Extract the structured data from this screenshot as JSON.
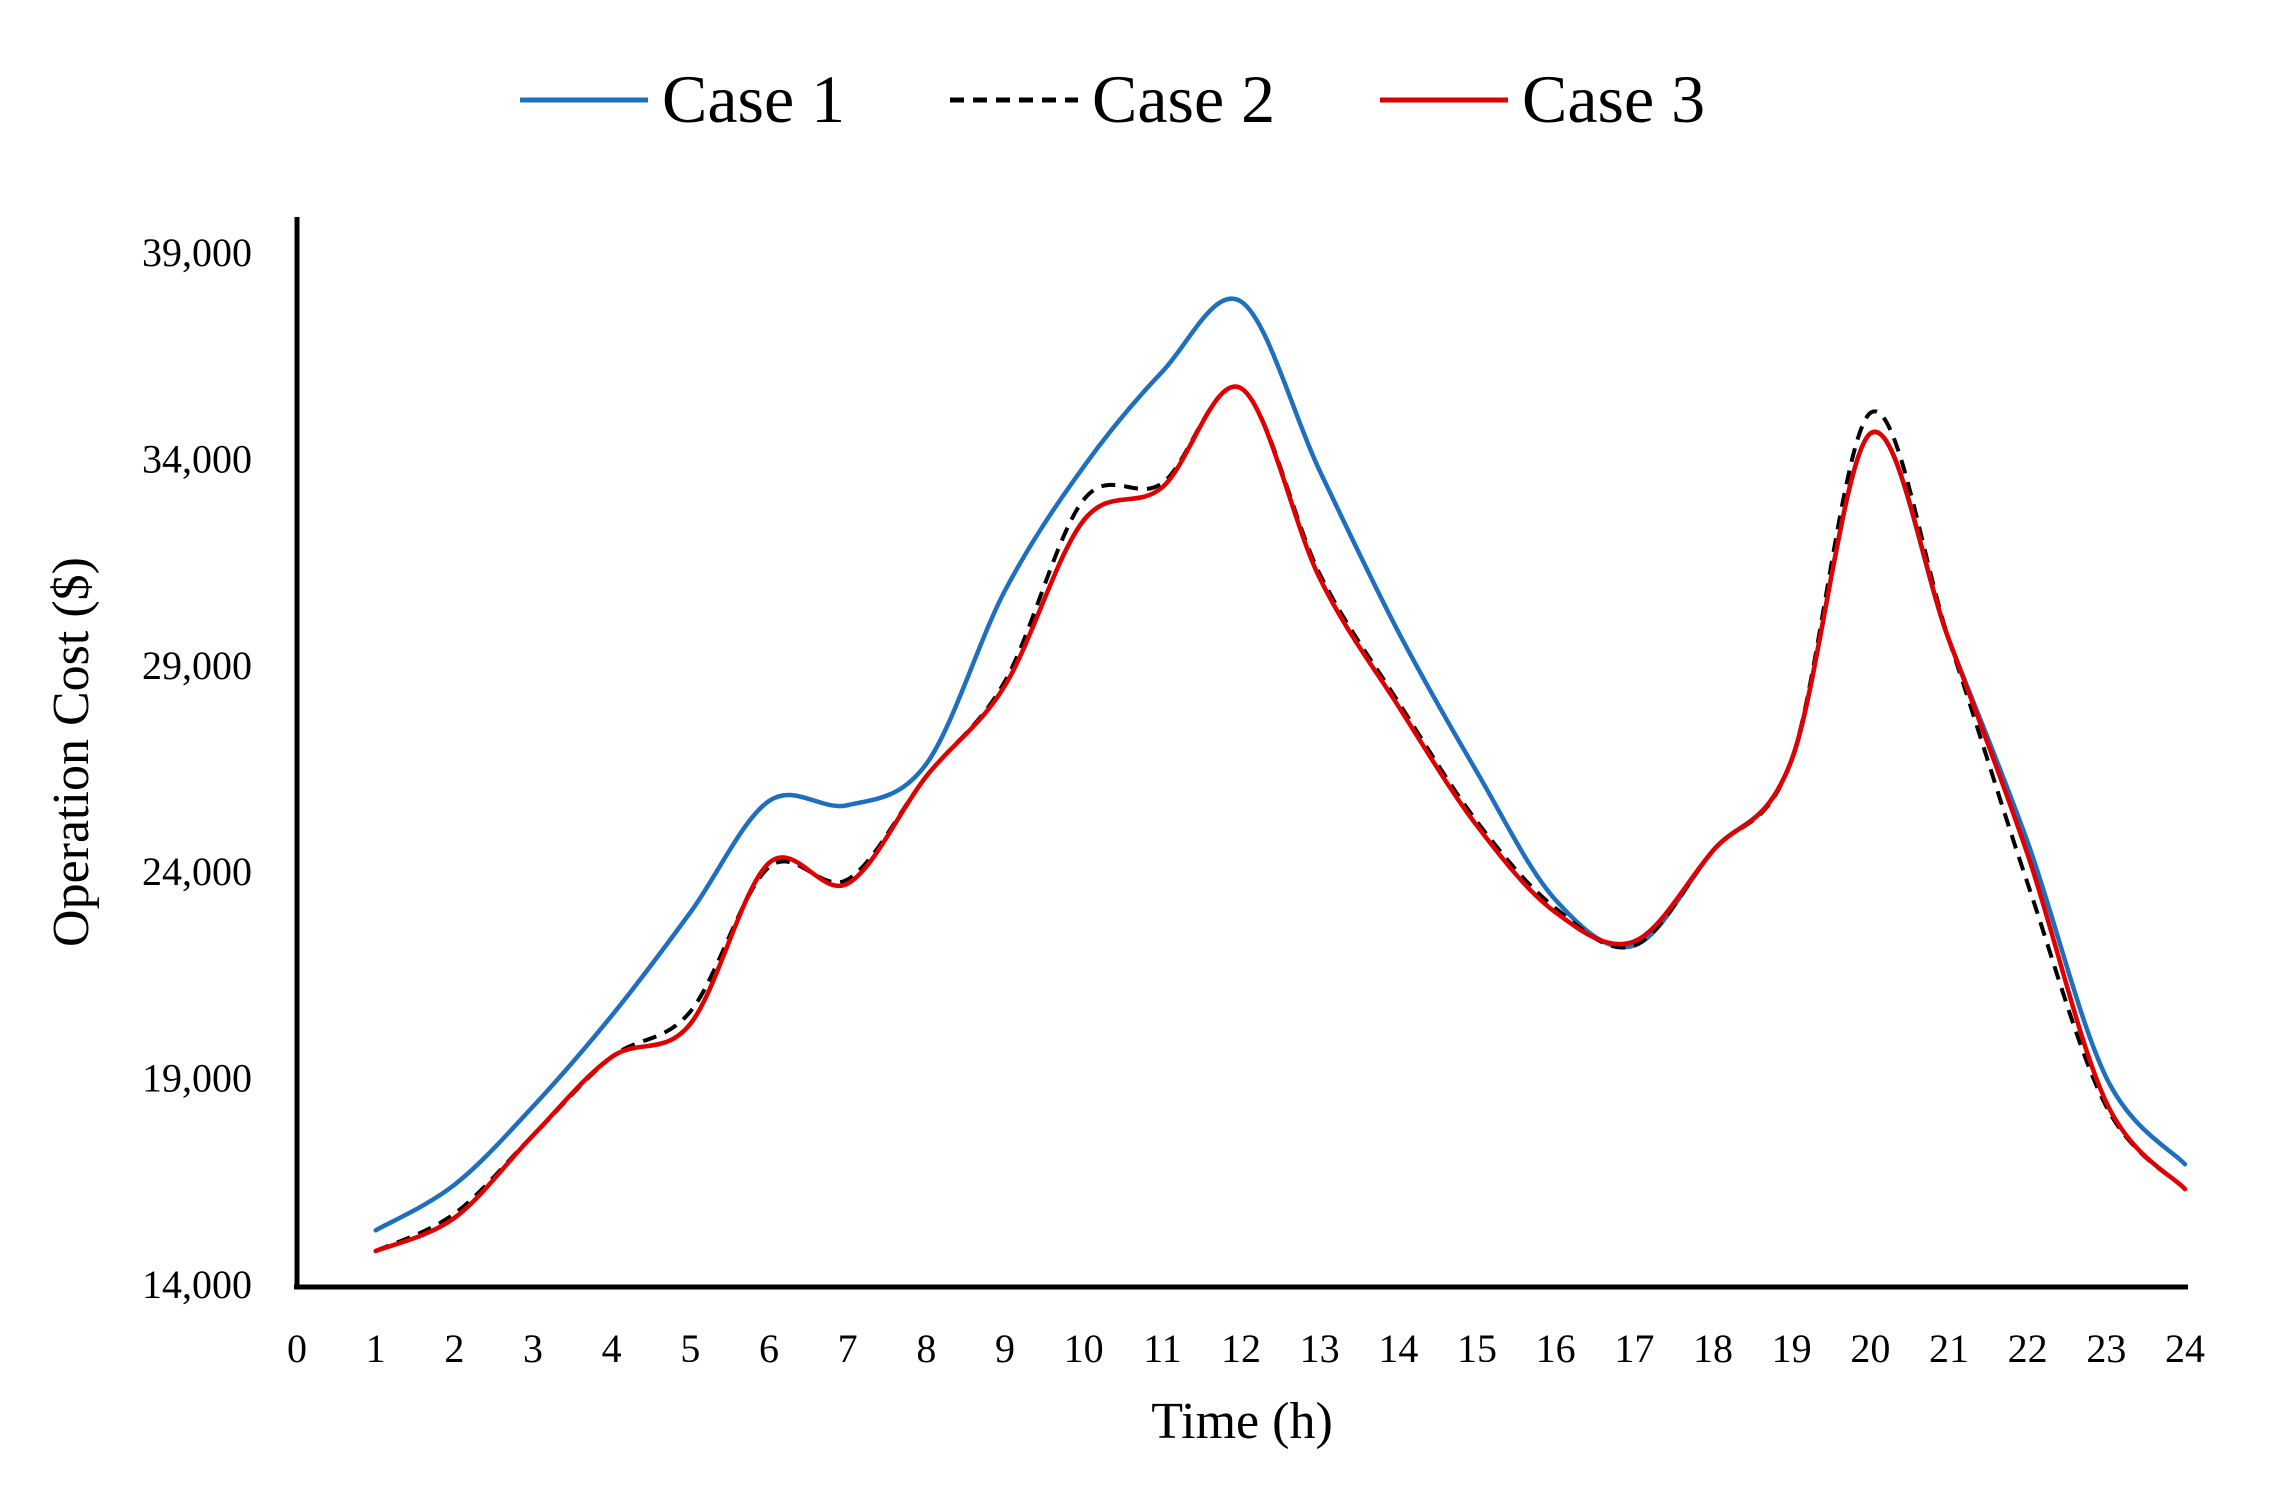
{
  "chart_data": {
    "type": "line",
    "title": "",
    "xlabel": "Time (h)",
    "ylabel": "Operation Cost ($)",
    "xlim": [
      0,
      24
    ],
    "ylim": [
      14000,
      39000
    ],
    "x_ticks": [
      "0",
      "1",
      "2",
      "3",
      "4",
      "5",
      "6",
      "7",
      "8",
      "9",
      "10",
      "11",
      "12",
      "13",
      "14",
      "15",
      "16",
      "17",
      "18",
      "19",
      "20",
      "21",
      "22",
      "23",
      "24"
    ],
    "y_ticks": [
      "14,000",
      "19,000",
      "24,000",
      "29,000",
      "34,000",
      "39,000"
    ],
    "y_tick_values": [
      14000,
      19000,
      24000,
      29000,
      34000,
      39000
    ],
    "grid": false,
    "legend_position": "top-center",
    "series": [
      {
        "name": "Case 1",
        "color": "#1f6fc0",
        "dash": "solid",
        "x": [
          1,
          2,
          3,
          4,
          5,
          6,
          7,
          8,
          9,
          10,
          11,
          12,
          13,
          14,
          15,
          16,
          17,
          18,
          19,
          20,
          21,
          22,
          23,
          24
        ],
        "values": [
          15300,
          16400,
          18300,
          20500,
          23000,
          25700,
          25600,
          26600,
          30800,
          33800,
          36100,
          37800,
          33700,
          29800,
          26400,
          23300,
          22200,
          24500,
          26700,
          34600,
          29600,
          24700,
          19000,
          16900
        ]
      },
      {
        "name": "Case 2",
        "color": "#000000",
        "dash": "dashed",
        "x": [
          1,
          2,
          3,
          4,
          5,
          6,
          7,
          8,
          9,
          10,
          11,
          12,
          13,
          14,
          15,
          16,
          17,
          18,
          19,
          20,
          21,
          22,
          23,
          24
        ],
        "values": [
          14800,
          15700,
          17600,
          19500,
          20600,
          24100,
          23800,
          26300,
          28600,
          33000,
          33400,
          35700,
          31200,
          28100,
          25200,
          23100,
          22200,
          24500,
          26700,
          35100,
          29600,
          23700,
          18300,
          16300
        ]
      },
      {
        "name": "Case 3",
        "color": "#e00000",
        "dash": "solid",
        "x": [
          1,
          2,
          3,
          4,
          5,
          6,
          7,
          8,
          9,
          10,
          11,
          12,
          13,
          14,
          15,
          16,
          17,
          18,
          19,
          20,
          21,
          22,
          23,
          24
        ],
        "values": [
          14800,
          15600,
          17600,
          19500,
          20300,
          24200,
          23700,
          26300,
          28500,
          32500,
          33300,
          35700,
          31100,
          28000,
          25100,
          23000,
          22300,
          24500,
          26700,
          34600,
          29600,
          24400,
          18400,
          16300
        ]
      }
    ]
  }
}
